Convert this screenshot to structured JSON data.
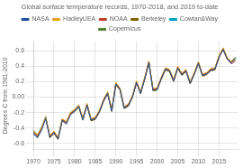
{
  "chart_data": {
    "type": "line",
    "title": "Global surface temperature records, 1970-2018, and 2019 to-date",
    "y_label": "Degrees C from 1981-2010",
    "x": [
      1970,
      1971,
      1972,
      1973,
      1974,
      1975,
      1976,
      1977,
      1978,
      1979,
      1980,
      1981,
      1982,
      1983,
      1984,
      1985,
      1986,
      1987,
      1988,
      1989,
      1990,
      1991,
      1992,
      1993,
      1994,
      1995,
      1996,
      1997,
      1998,
      1999,
      2000,
      2001,
      2002,
      2003,
      2004,
      2005,
      2006,
      2007,
      2008,
      2009,
      2010,
      2011,
      2012,
      2013,
      2014,
      2015,
      2016,
      2017,
      2018,
      2019
    ],
    "series": [
      {
        "name": "NASA",
        "color": "#1f4e9e",
        "values": [
          -0.48,
          -0.52,
          -0.43,
          -0.28,
          -0.52,
          -0.46,
          -0.54,
          -0.3,
          -0.35,
          -0.23,
          -0.18,
          -0.12,
          -0.29,
          -0.1,
          -0.3,
          -0.28,
          -0.19,
          -0.05,
          0.05,
          -0.18,
          0.17,
          0.1,
          -0.14,
          -0.11,
          0.0,
          0.19,
          0.05,
          0.24,
          0.45,
          0.09,
          0.1,
          0.24,
          0.36,
          0.34,
          0.21,
          0.38,
          0.29,
          0.34,
          0.18,
          0.3,
          0.44,
          0.28,
          0.3,
          0.35,
          0.36,
          0.52,
          0.62,
          0.49,
          0.44,
          0.5
        ]
      },
      {
        "name": "HadleyUEA",
        "color": "#e8a020",
        "values": [
          -0.44,
          -0.49,
          -0.4,
          -0.26,
          -0.5,
          -0.44,
          -0.52,
          -0.28,
          -0.32,
          -0.2,
          -0.16,
          -0.1,
          -0.27,
          -0.08,
          -0.28,
          -0.26,
          -0.17,
          -0.03,
          0.07,
          -0.16,
          0.19,
          0.12,
          -0.12,
          -0.09,
          0.02,
          0.21,
          0.07,
          0.26,
          0.47,
          0.11,
          0.12,
          0.26,
          0.38,
          0.36,
          0.23,
          0.4,
          0.31,
          0.36,
          0.2,
          0.32,
          0.46,
          0.3,
          0.32,
          0.37,
          0.38,
          0.54,
          0.64,
          0.51,
          0.46,
          0.48
        ]
      },
      {
        "name": "NOAA",
        "color": "#c0392b",
        "values": [
          -0.46,
          -0.5,
          -0.41,
          -0.27,
          -0.51,
          -0.45,
          -0.53,
          -0.29,
          -0.33,
          -0.21,
          -0.17,
          -0.11,
          -0.28,
          -0.09,
          -0.29,
          -0.27,
          -0.18,
          -0.04,
          0.06,
          -0.17,
          0.18,
          0.11,
          -0.13,
          -0.1,
          0.01,
          0.2,
          0.06,
          0.25,
          0.46,
          0.1,
          0.11,
          0.25,
          0.37,
          0.35,
          0.22,
          0.39,
          0.3,
          0.35,
          0.19,
          0.31,
          0.45,
          0.29,
          0.31,
          0.36,
          0.37,
          0.53,
          0.61,
          0.49,
          0.43,
          0.47
        ]
      },
      {
        "name": "Berkeley",
        "color": "#7f6000",
        "values": [
          -0.47,
          -0.53,
          -0.42,
          -0.27,
          -0.53,
          -0.47,
          -0.55,
          -0.31,
          -0.34,
          -0.22,
          -0.19,
          -0.13,
          -0.3,
          -0.11,
          -0.31,
          -0.29,
          -0.2,
          -0.06,
          0.04,
          -0.19,
          0.16,
          0.09,
          -0.15,
          -0.12,
          -0.01,
          0.18,
          0.04,
          0.23,
          0.44,
          0.08,
          0.09,
          0.23,
          0.35,
          0.33,
          0.2,
          0.37,
          0.28,
          0.33,
          0.17,
          0.29,
          0.43,
          0.27,
          0.29,
          0.34,
          0.35,
          0.51,
          0.63,
          0.5,
          0.46,
          0.52
        ]
      },
      {
        "name": "Cowtan&Way",
        "color": "#00a0c0",
        "values": [
          -0.45,
          -0.51,
          -0.41,
          -0.26,
          -0.52,
          -0.46,
          -0.54,
          -0.3,
          -0.33,
          -0.21,
          -0.18,
          -0.12,
          -0.29,
          -0.1,
          -0.3,
          -0.28,
          -0.19,
          -0.05,
          0.05,
          -0.18,
          0.17,
          0.1,
          -0.14,
          -0.11,
          0.0,
          0.19,
          0.05,
          0.24,
          0.45,
          0.09,
          0.1,
          0.24,
          0.36,
          0.34,
          0.21,
          0.38,
          0.29,
          0.34,
          0.18,
          0.3,
          0.44,
          0.28,
          0.3,
          0.35,
          0.36,
          0.52,
          0.62,
          0.49,
          0.46,
          0.51
        ]
      },
      {
        "name": "Copernicus",
        "color": "#548235",
        "values": [
          -0.43,
          -0.49,
          -0.39,
          -0.25,
          -0.51,
          -0.45,
          -0.53,
          -0.29,
          -0.32,
          -0.2,
          -0.17,
          -0.11,
          -0.28,
          -0.09,
          -0.29,
          -0.27,
          -0.18,
          -0.04,
          0.06,
          -0.17,
          0.18,
          0.11,
          -0.13,
          -0.1,
          0.01,
          0.2,
          0.06,
          0.25,
          0.46,
          0.1,
          0.11,
          0.25,
          0.37,
          0.35,
          0.22,
          0.39,
          0.3,
          0.35,
          0.19,
          0.31,
          0.45,
          0.29,
          0.31,
          0.36,
          0.37,
          0.53,
          0.63,
          0.5,
          0.44,
          null
        ]
      }
    ],
    "xlim": [
      1970,
      2019.5
    ],
    "xticks": [
      1970,
      1975,
      1980,
      1985,
      1990,
      1995,
      2000,
      2005,
      2010,
      2015
    ],
    "ylim": [
      -0.68,
      0.72
    ],
    "yticks": [
      -0.6,
      -0.4,
      -0.2,
      {
        "value": 0,
        "label": "0.00"
      },
      0.2,
      0.4,
      0.6
    ],
    "grid": true,
    "legend": "top"
  }
}
